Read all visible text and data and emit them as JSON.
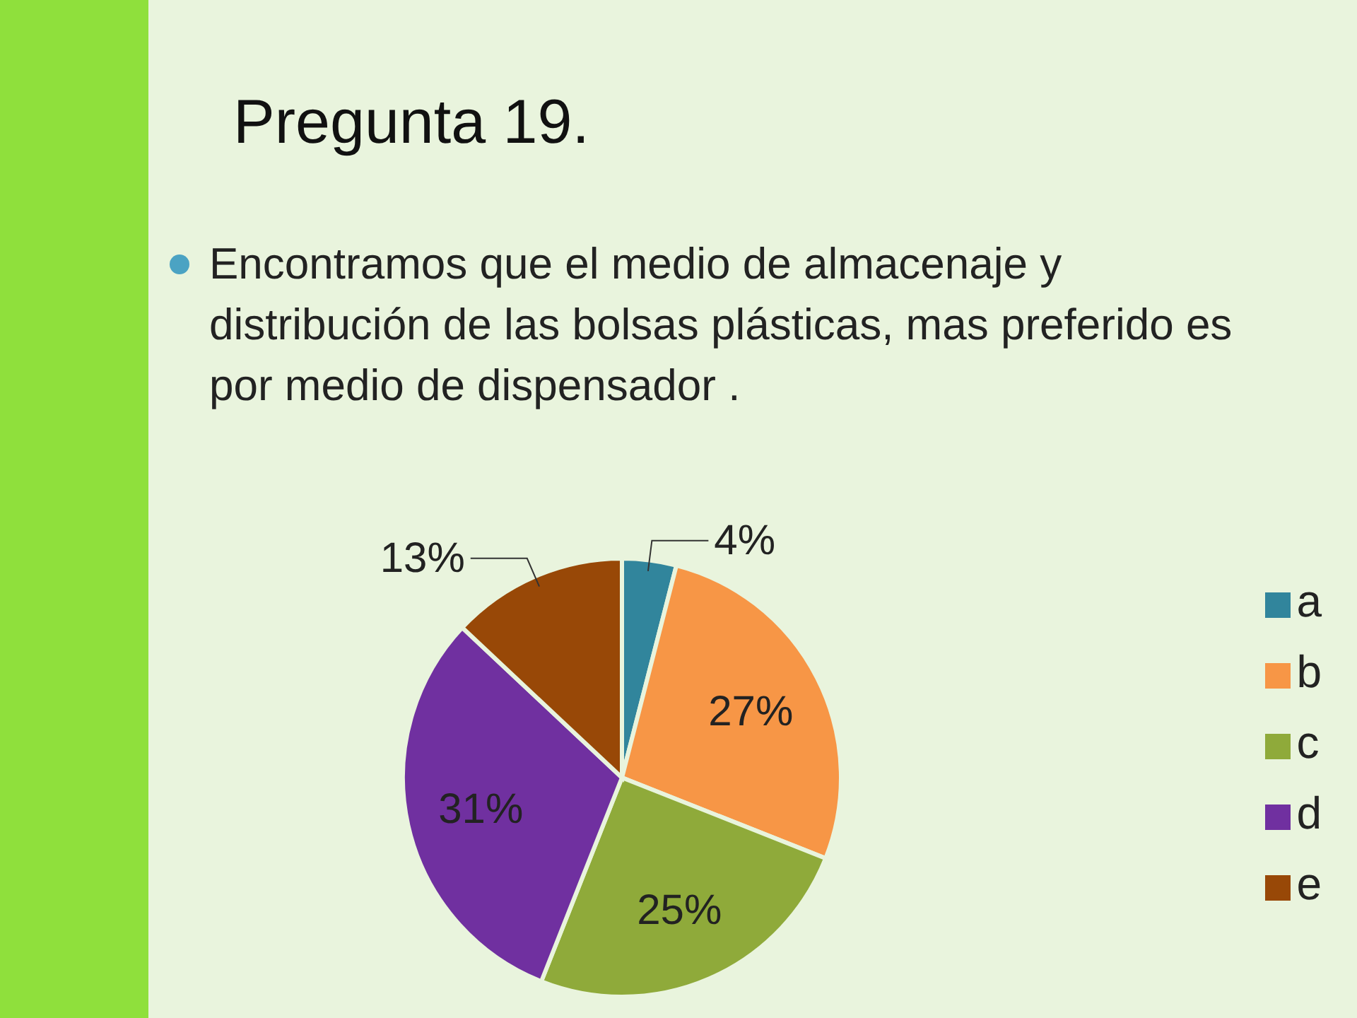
{
  "chart_data": {
    "type": "pie",
    "title": "Pregunta 19.",
    "subtitle": "Encontramos que el medio de almacenaje y distribución de las bolsas plásticas, mas preferido es por medio de  dispensador .",
    "categories": [
      "a",
      "b",
      "c",
      "d",
      "e"
    ],
    "values": [
      4,
      27,
      25,
      31,
      13
    ],
    "colors": [
      "#31859c",
      "#f79646",
      "#8faa3a",
      "#7030a0",
      "#984807"
    ],
    "value_labels": [
      "4%",
      "27%",
      "25%",
      "31%",
      "13%"
    ],
    "legend": "right"
  }
}
